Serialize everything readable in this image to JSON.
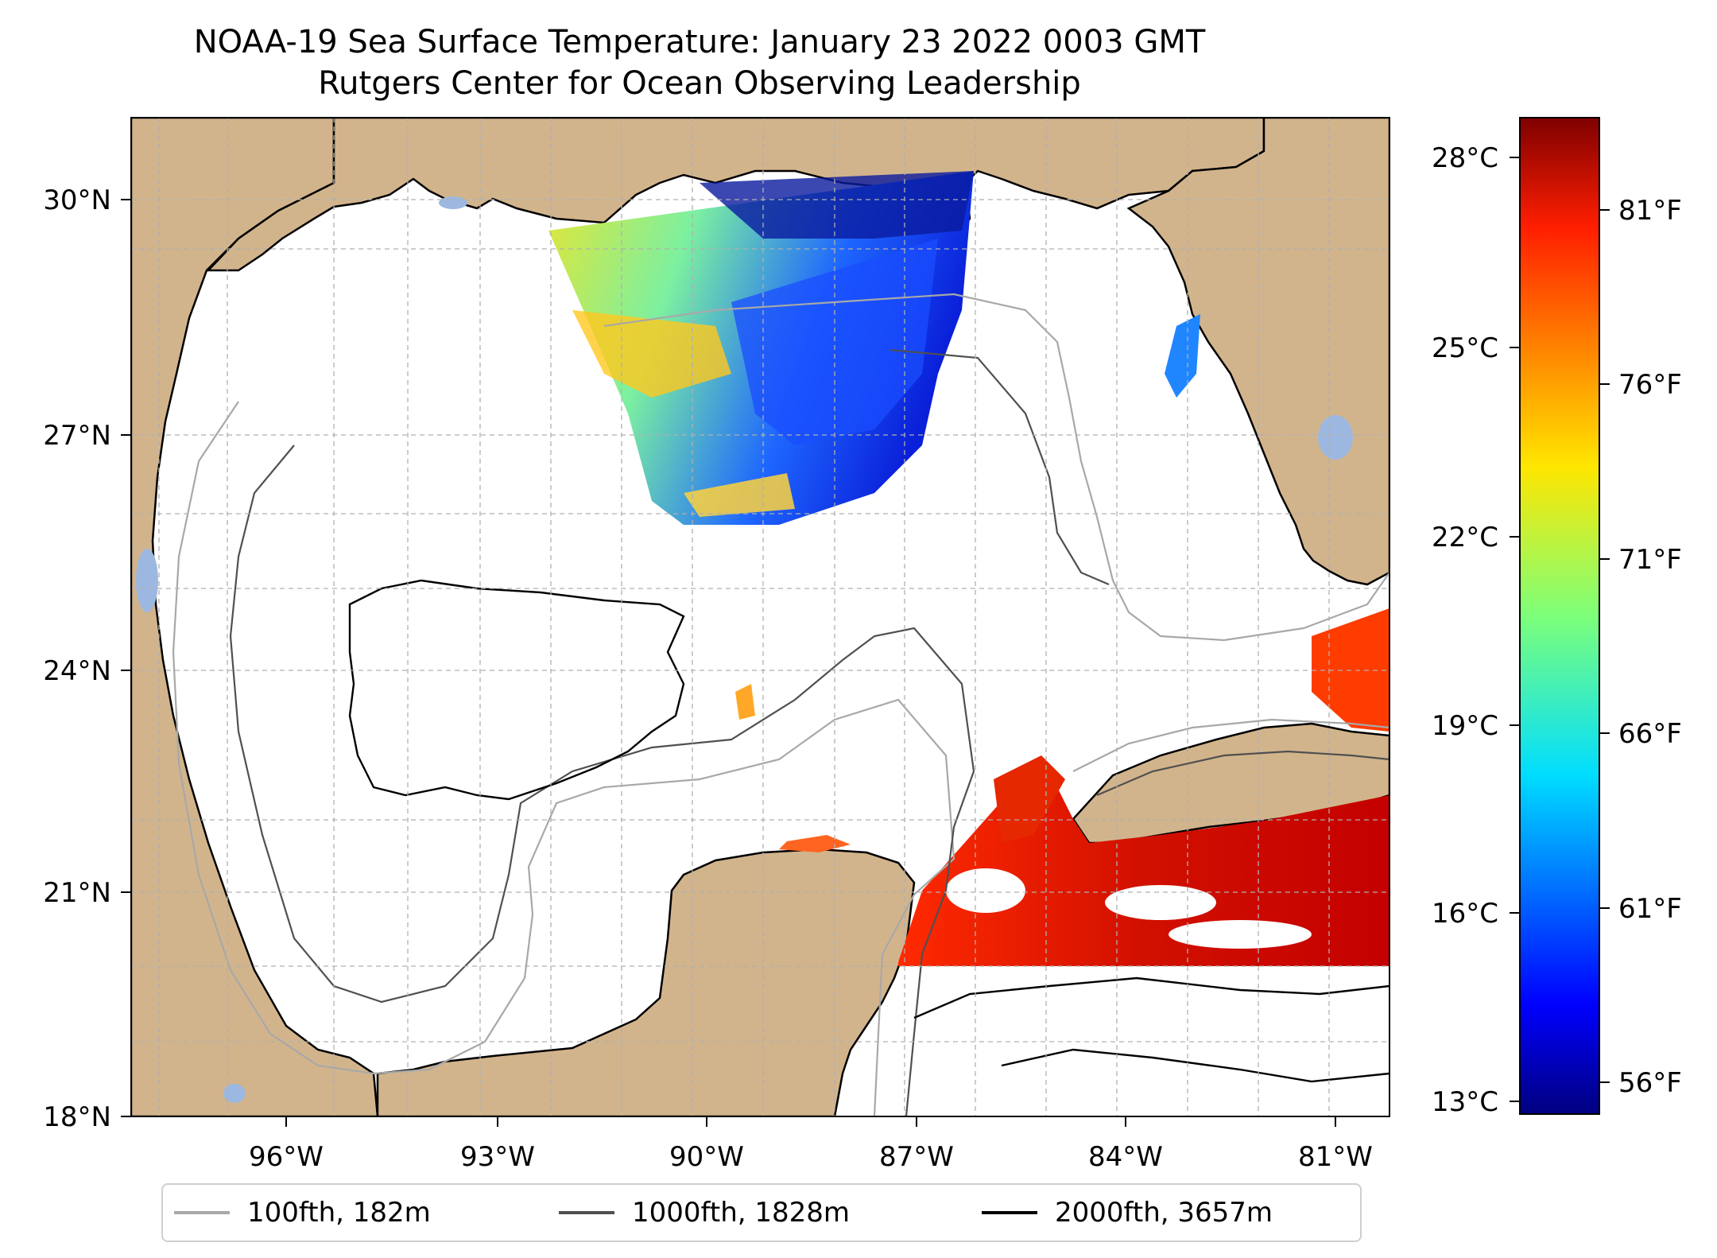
{
  "title": {
    "line1": "NOAA-19 Sea Surface Temperature: January 23 2022 0003 GMT",
    "line2": "Rutgers Center for Ocean Observing Leadership"
  },
  "map": {
    "lat_labels": [
      "30°N",
      "27°N",
      "24°N",
      "21°N",
      "18°N"
    ],
    "lon_labels": [
      "96°W",
      "93°W",
      "90°W",
      "87°W",
      "84°W",
      "81°W"
    ],
    "extent": {
      "lon": [
        -98.0,
        -80.3
      ],
      "lat": [
        18.0,
        31.0
      ]
    },
    "colors": {
      "land": "#d2b48c",
      "lakes": "#9db8e0",
      "ocean": "#ffffff",
      "grid": "#b0b0b0"
    }
  },
  "colorbar": {
    "celsius_labels": [
      "28°C",
      "25°C",
      "22°C",
      "19°C",
      "16°C",
      "13°C"
    ],
    "fahrenheit_labels": [
      "81°F",
      "76°F",
      "71°F",
      "66°F",
      "61°F",
      "56°F"
    ],
    "range_c": [
      12.8,
      28.6
    ],
    "colormap": "jet"
  },
  "legend": {
    "items": [
      {
        "label": "100fth, 182m",
        "color": "#a8a8a8"
      },
      {
        "label": "1000fth, 1828m",
        "color": "#505050"
      },
      {
        "label": "2000fth, 3657m",
        "color": "#000000"
      }
    ]
  }
}
